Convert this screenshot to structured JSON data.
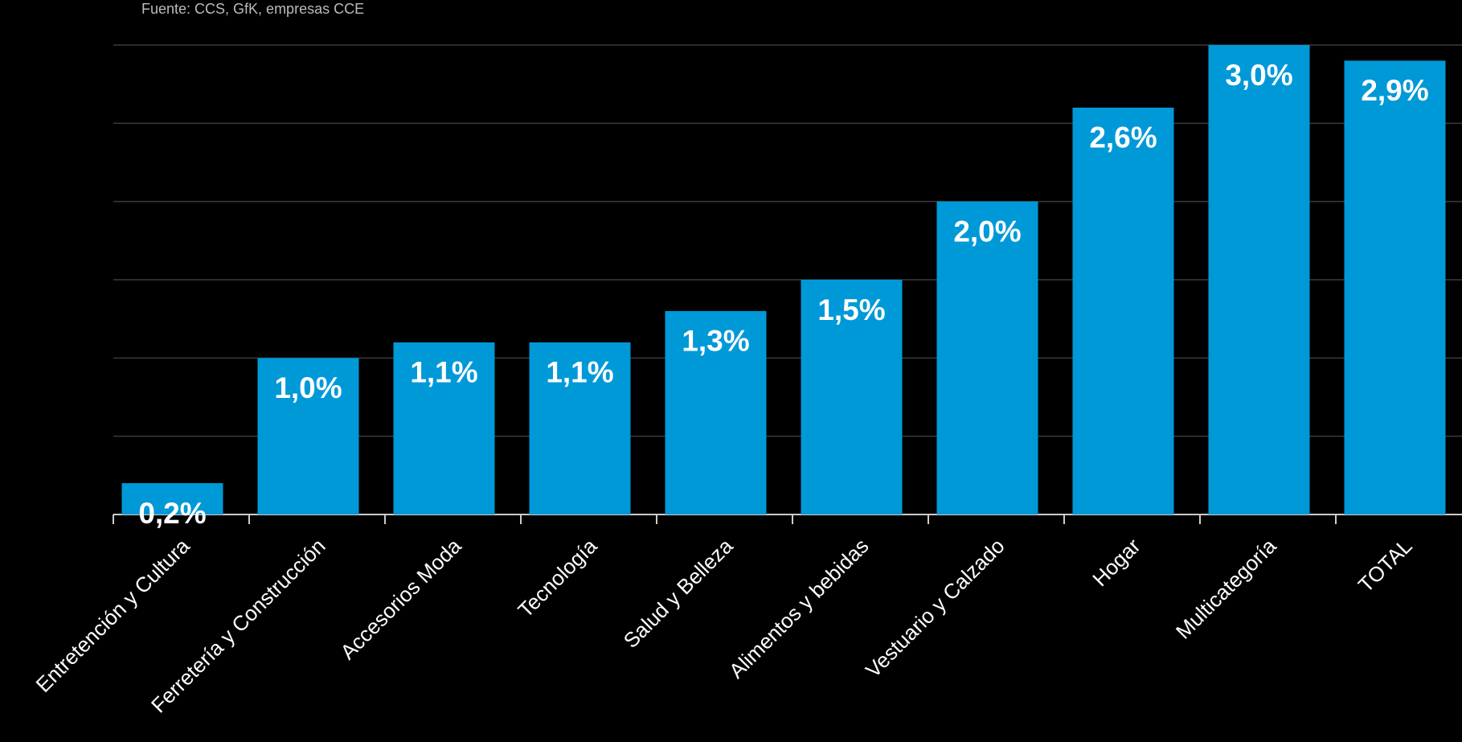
{
  "chart_data": {
    "type": "bar",
    "source": "Fuente: CCS, GfK, empresas CCE",
    "categories": [
      "Entretención y Cultura",
      "Ferretería y Construcción",
      "Accesorios Moda",
      "Tecnología",
      "Salud y Belleza",
      "Alimentos y bebidas",
      "Vestuario y Calzado",
      "Hogar",
      "Multicategoría",
      "TOTAL"
    ],
    "values": [
      0.2,
      1.0,
      1.1,
      1.1,
      1.3,
      1.5,
      2.0,
      2.6,
      3.0,
      2.9
    ],
    "value_labels": [
      "0,2%",
      "1,0%",
      "1,1%",
      "1,1%",
      "1,3%",
      "1,5%",
      "2,0%",
      "2,6%",
      "3,0%",
      "2,9%"
    ],
    "color": "#0099d8",
    "ylim": [
      0,
      3.0
    ],
    "yticks": [
      0,
      0.5,
      1.0,
      1.5,
      2.0,
      2.5,
      3.0
    ],
    "grid": true
  }
}
